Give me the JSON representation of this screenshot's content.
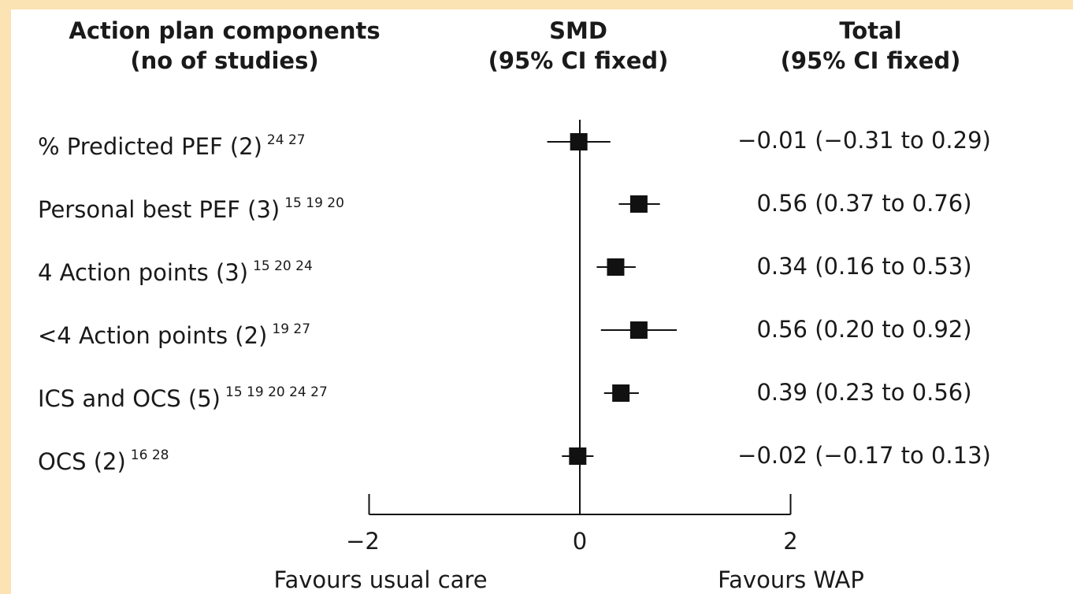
{
  "headers": {
    "col1_line1": "Action plan components",
    "col1_line2": "(no of studies)",
    "col2_line1": "SMD",
    "col2_line2": "(95% CI fixed)",
    "col3_line1": "Total",
    "col3_line2": "(95% CI fixed)"
  },
  "rows": [
    {
      "label": "% Predicted PEF (2)",
      "refs": "24 27",
      "value_text": "−0.01 (−0.31 to 0.29)"
    },
    {
      "label": "Personal best PEF (3)",
      "refs": "15 19 20",
      "value_text": "0.56 (0.37 to 0.76)"
    },
    {
      "label": "4 Action points (3)",
      "refs": "15 20 24",
      "value_text": "0.34 (0.16 to 0.53)"
    },
    {
      "label": "<4 Action points (2)",
      "refs": "19 27",
      "value_text": "0.56 (0.20 to 0.92)"
    },
    {
      "label": "ICS and OCS (5)",
      "refs": "15 19 20 24 27",
      "value_text": "0.39 (0.23 to 0.56)"
    },
    {
      "label": "OCS (2)",
      "refs": "16 28",
      "value_text": "−0.02 (−0.17 to 0.13)"
    }
  ],
  "axis": {
    "tick_labels": [
      "−2",
      "0",
      "2"
    ],
    "left_caption": "Favours usual care",
    "right_caption": "Favours WAP"
  },
  "colors": {
    "background_frame": "#fce3b4",
    "panel": "#ffffff",
    "marks": "#111111"
  },
  "chart_data": {
    "type": "forest",
    "xlim": [
      -2,
      2
    ],
    "xticks": [
      -2,
      0,
      2
    ],
    "reference_line": 0,
    "series": [
      {
        "label": "% Predicted PEF (2)",
        "estimate": -0.01,
        "ci_low": -0.31,
        "ci_high": 0.29
      },
      {
        "label": "Personal best PEF (3)",
        "estimate": 0.56,
        "ci_low": 0.37,
        "ci_high": 0.76
      },
      {
        "label": "4 Action points (3)",
        "estimate": 0.34,
        "ci_low": 0.16,
        "ci_high": 0.53
      },
      {
        "label": "<4 Action points (2)",
        "estimate": 0.56,
        "ci_low": 0.2,
        "ci_high": 0.92
      },
      {
        "label": "ICS and OCS (5)",
        "estimate": 0.39,
        "ci_low": 0.23,
        "ci_high": 0.56
      },
      {
        "label": "OCS (2)",
        "estimate": -0.02,
        "ci_low": -0.17,
        "ci_high": 0.13
      }
    ]
  }
}
